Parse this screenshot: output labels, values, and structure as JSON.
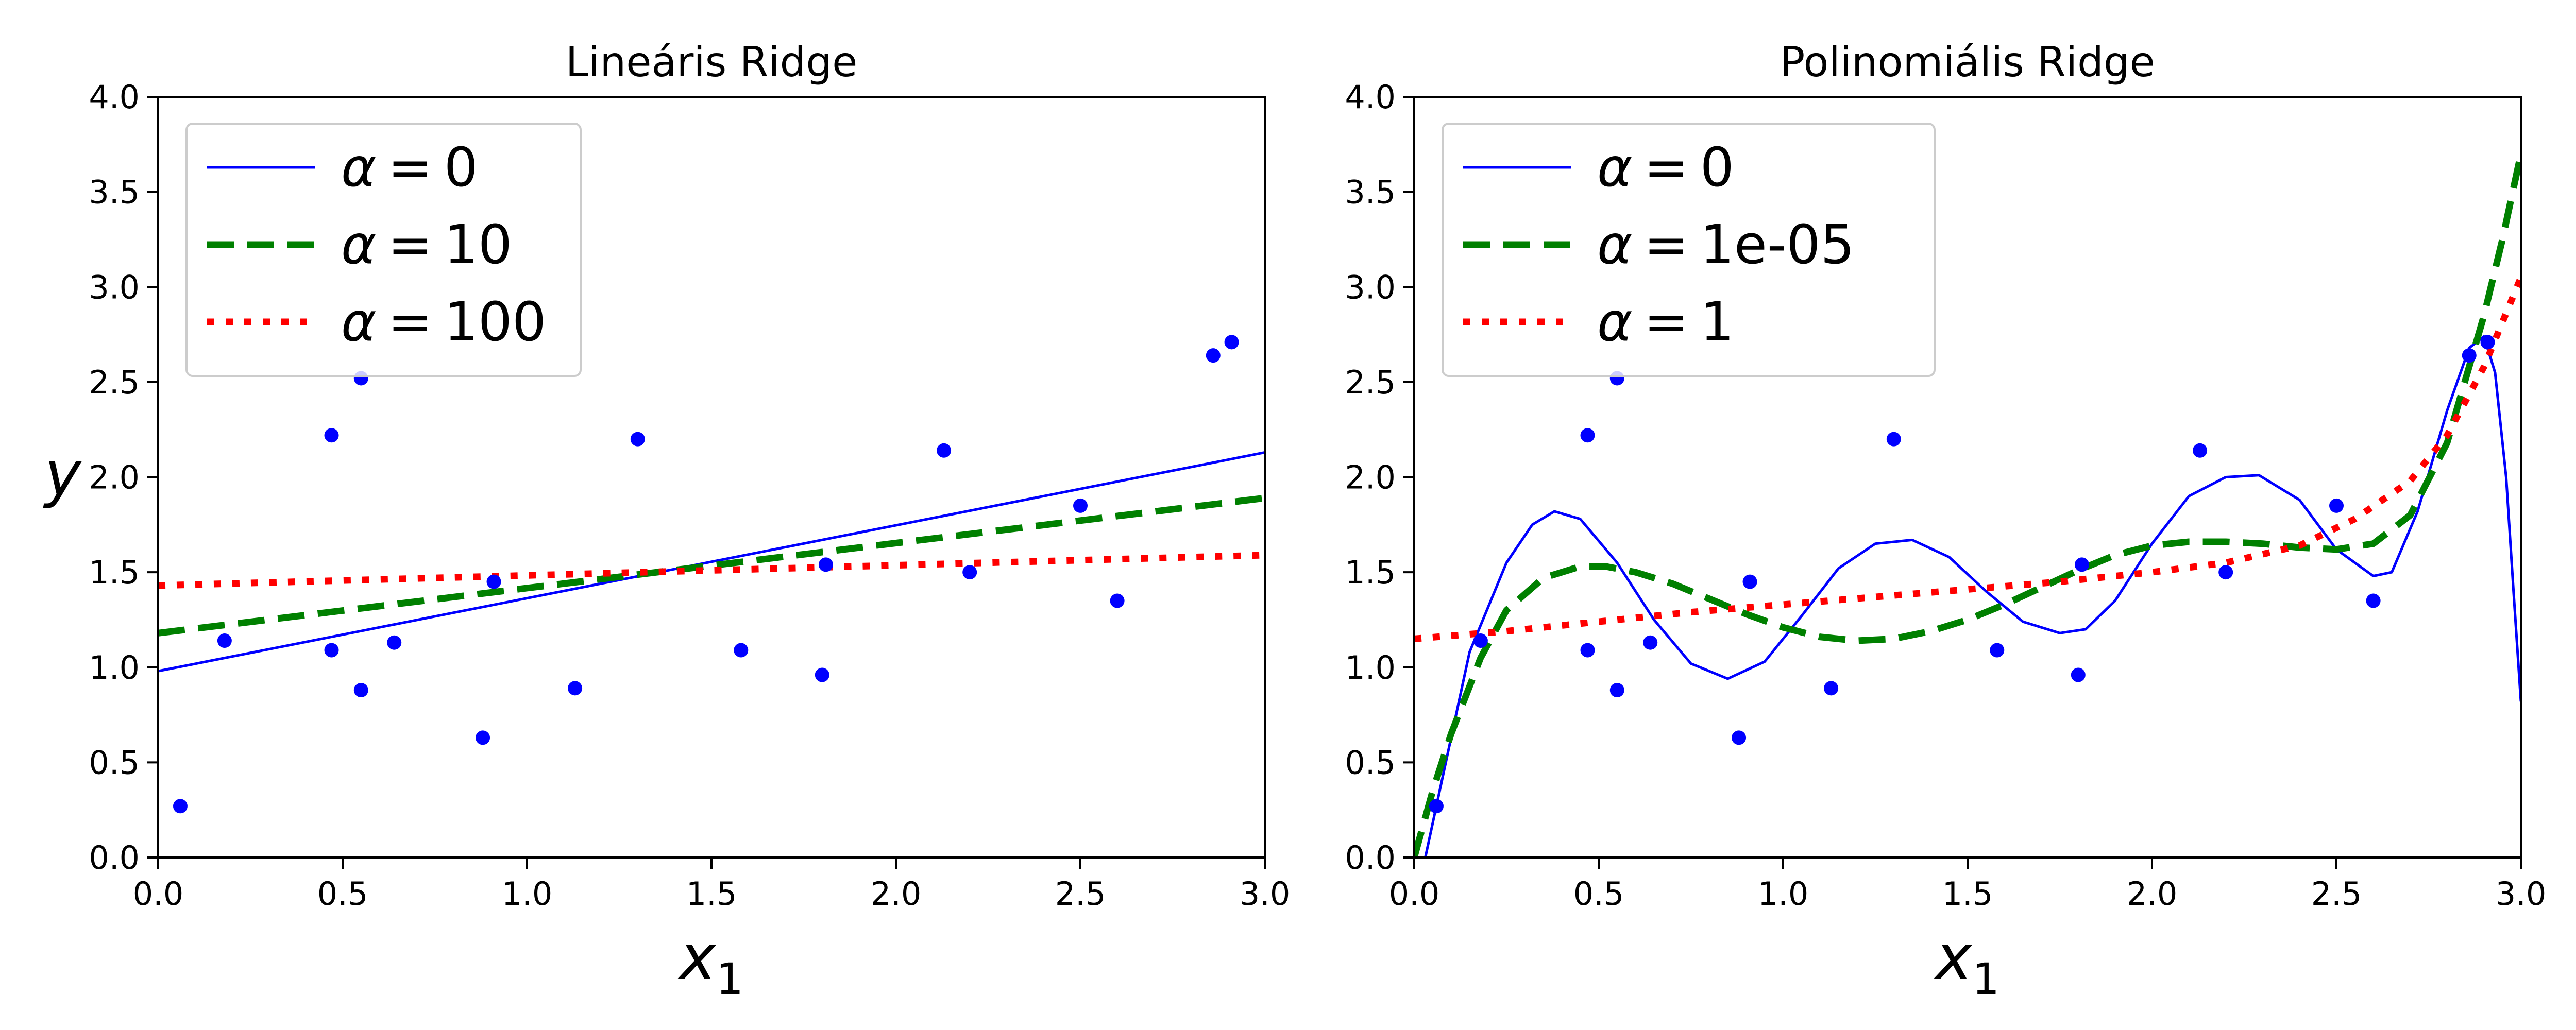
{
  "chart_data": [
    {
      "type": "line",
      "title": "Lineáris Ridge",
      "xlabel": "x",
      "xlabel_sub": "1",
      "ylabel": "y",
      "xlim": [
        0,
        3
      ],
      "ylim": [
        0,
        4
      ],
      "xticks": [
        "0.0",
        "0.5",
        "1.0",
        "1.5",
        "2.0",
        "2.5",
        "3.0"
      ],
      "yticks": [
        "0.0",
        "0.5",
        "1.0",
        "1.5",
        "2.0",
        "2.5",
        "3.0",
        "3.5",
        "4.0"
      ],
      "grid": false,
      "legend_position": "upper-left",
      "scatter": {
        "color": "#0000ff",
        "x": [
          0.06,
          0.18,
          0.47,
          0.47,
          0.55,
          0.55,
          0.64,
          0.88,
          0.91,
          1.13,
          1.3,
          1.58,
          1.8,
          1.81,
          2.13,
          2.2,
          2.5,
          2.6,
          2.86,
          2.91
        ],
        "y": [
          0.27,
          1.14,
          2.22,
          1.09,
          2.52,
          0.88,
          1.13,
          0.63,
          1.45,
          0.89,
          2.2,
          1.09,
          0.96,
          1.54,
          2.14,
          1.5,
          1.85,
          1.35,
          2.64,
          2.71
        ]
      },
      "series": [
        {
          "alpha_value": "0",
          "color": "#0000ff",
          "style": "solid",
          "x": [
            0,
            3
          ],
          "y": [
            0.98,
            2.13
          ]
        },
        {
          "alpha_value": "10",
          "color": "#008000",
          "style": "dashed",
          "x": [
            0,
            3
          ],
          "y": [
            1.18,
            1.89
          ]
        },
        {
          "alpha_value": "100",
          "color": "#ff0000",
          "style": "dotted",
          "x": [
            0,
            3
          ],
          "y": [
            1.43,
            1.59
          ]
        }
      ]
    },
    {
      "type": "line",
      "title": "Polinomiális Ridge",
      "xlabel": "x",
      "xlabel_sub": "1",
      "ylabel": "",
      "xlim": [
        0,
        3
      ],
      "ylim": [
        0,
        4
      ],
      "xticks": [
        "0.0",
        "0.5",
        "1.0",
        "1.5",
        "2.0",
        "2.5",
        "3.0"
      ],
      "yticks": [
        "0.0",
        "0.5",
        "1.0",
        "1.5",
        "2.0",
        "2.5",
        "3.0",
        "3.5",
        "4.0"
      ],
      "grid": false,
      "legend_position": "upper-left",
      "scatter": {
        "color": "#0000ff",
        "x": [
          0.06,
          0.18,
          0.47,
          0.47,
          0.55,
          0.55,
          0.64,
          0.88,
          0.91,
          1.13,
          1.3,
          1.58,
          1.8,
          1.81,
          2.13,
          2.2,
          2.5,
          2.6,
          2.86,
          2.91
        ],
        "y": [
          0.27,
          1.14,
          2.22,
          1.09,
          2.52,
          0.88,
          1.13,
          0.63,
          1.45,
          0.89,
          2.2,
          1.09,
          0.96,
          1.54,
          2.14,
          1.5,
          1.85,
          1.35,
          2.64,
          2.71
        ]
      },
      "series": [
        {
          "alpha_value": "0",
          "color": "#0000ff",
          "style": "solid",
          "x": [
            0.03,
            0.08,
            0.15,
            0.25,
            0.32,
            0.38,
            0.45,
            0.55,
            0.65,
            0.75,
            0.85,
            0.95,
            1.05,
            1.15,
            1.25,
            1.35,
            1.45,
            1.55,
            1.65,
            1.75,
            1.82,
            1.9,
            2.0,
            2.1,
            2.2,
            2.29,
            2.4,
            2.5,
            2.6,
            2.65,
            2.72,
            2.8,
            2.86,
            2.9,
            2.93,
            2.96,
            2.98,
            3.0
          ],
          "y": [
            0.0,
            0.45,
            1.08,
            1.55,
            1.75,
            1.82,
            1.78,
            1.55,
            1.25,
            1.02,
            0.94,
            1.03,
            1.27,
            1.52,
            1.65,
            1.67,
            1.58,
            1.4,
            1.24,
            1.18,
            1.2,
            1.35,
            1.65,
            1.9,
            2.0,
            2.01,
            1.88,
            1.62,
            1.48,
            1.5,
            1.82,
            2.35,
            2.68,
            2.74,
            2.55,
            2.0,
            1.4,
            0.82
          ]
        },
        {
          "alpha_value": "1e-05",
          "color": "#008000",
          "style": "dashed",
          "x": [
            0.0,
            0.05,
            0.1,
            0.18,
            0.25,
            0.35,
            0.45,
            0.52,
            0.6,
            0.7,
            0.8,
            0.9,
            1.0,
            1.1,
            1.2,
            1.3,
            1.4,
            1.5,
            1.6,
            1.7,
            1.8,
            1.9,
            2.0,
            2.1,
            2.2,
            2.3,
            2.4,
            2.5,
            2.6,
            2.7,
            2.8,
            2.9,
            2.95,
            3.0
          ],
          "y": [
            0.0,
            0.35,
            0.65,
            1.05,
            1.3,
            1.47,
            1.53,
            1.53,
            1.5,
            1.44,
            1.36,
            1.28,
            1.21,
            1.16,
            1.14,
            1.15,
            1.19,
            1.25,
            1.33,
            1.42,
            1.51,
            1.59,
            1.64,
            1.66,
            1.66,
            1.65,
            1.63,
            1.62,
            1.65,
            1.8,
            2.18,
            2.85,
            3.25,
            3.7
          ]
        },
        {
          "alpha_value": "1",
          "color": "#ff0000",
          "style": "dotted",
          "x": [
            0.0,
            0.25,
            0.5,
            0.75,
            1.0,
            1.25,
            1.5,
            1.75,
            2.0,
            2.2,
            2.4,
            2.55,
            2.7,
            2.8,
            2.9,
            3.0
          ],
          "y": [
            1.15,
            1.19,
            1.24,
            1.29,
            1.33,
            1.37,
            1.41,
            1.45,
            1.5,
            1.55,
            1.64,
            1.78,
            1.98,
            2.22,
            2.58,
            3.05
          ]
        }
      ]
    }
  ]
}
